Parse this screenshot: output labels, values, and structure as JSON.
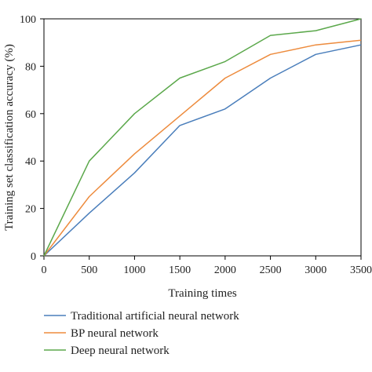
{
  "chart_data": {
    "type": "line",
    "xlabel": "Training times",
    "ylabel": "Training set classification accuracy (%)",
    "x": [
      0,
      500,
      1000,
      1500,
      2000,
      2500,
      3000,
      3500
    ],
    "xlim": [
      0,
      3500
    ],
    "ylim": [
      0,
      100
    ],
    "xticks": [
      0,
      500,
      1000,
      1500,
      2000,
      2500,
      3000,
      3500
    ],
    "yticks": [
      0,
      20,
      40,
      60,
      80,
      100
    ],
    "grid": false,
    "legend_position": "bottom",
    "series": [
      {
        "name": "Traditional artificial neural network",
        "color": "#4a7ebb",
        "values": [
          0,
          18,
          35,
          55,
          62,
          75,
          85,
          89
        ]
      },
      {
        "name": "BP neural network",
        "color": "#ed8b3d",
        "values": [
          0,
          25,
          43,
          59,
          75,
          85,
          89,
          91
        ]
      },
      {
        "name": "Deep neural network",
        "color": "#5ba84b",
        "values": [
          0,
          40,
          60,
          75,
          82,
          93,
          95,
          100
        ]
      }
    ]
  }
}
